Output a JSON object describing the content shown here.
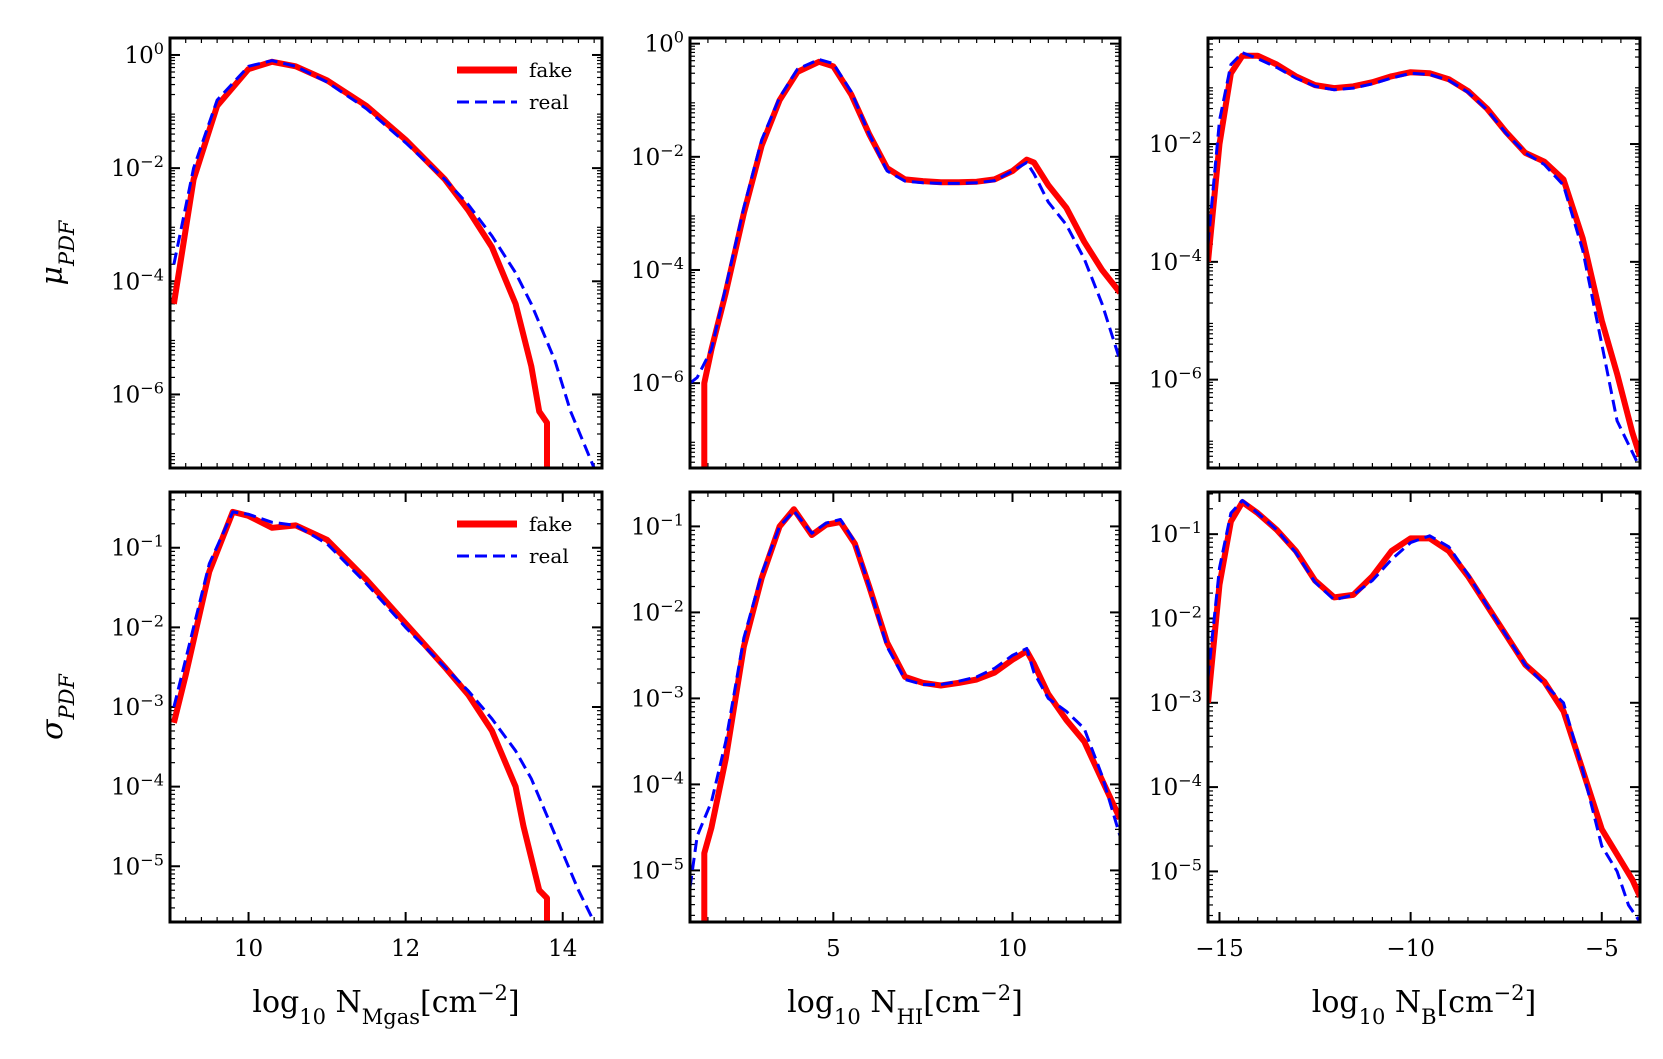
{
  "figure": {
    "type": "grid-of-line-charts",
    "rows": 2,
    "cols": 3,
    "series_style": {
      "fake": {
        "color": "#ff0000",
        "dash": "solid"
      },
      "real": {
        "color": "#0000ff",
        "dash": "dashed"
      }
    },
    "legend": {
      "entries": [
        "fake",
        "real"
      ],
      "placement": "top-right of first column panels"
    }
  },
  "chart_data": [
    {
      "id": "mu-mgas",
      "type": "line",
      "row": 0,
      "col": 0,
      "yscale": "log",
      "xlim": [
        9,
        14.5
      ],
      "ylim_exp": [
        -7.3,
        0.3
      ],
      "ylabel": "μ",
      "ylabel_sub": "PDF",
      "xlabel": "",
      "yticks": [
        {
          "exp": 0,
          "base": "10",
          "sup": "0"
        },
        {
          "exp": -2,
          "base": "10",
          "sup": "−2"
        },
        {
          "exp": -4,
          "base": "10",
          "sup": "−4"
        },
        {
          "exp": -6,
          "base": "10",
          "sup": "−6"
        }
      ],
      "xticks": [],
      "legend": {
        "fake": "fake",
        "real": "real"
      },
      "series": [
        {
          "name": "fake",
          "x": [
            9.05,
            9.3,
            9.6,
            10.0,
            10.3,
            10.6,
            11.0,
            11.5,
            12.0,
            12.5,
            12.8,
            13.1,
            13.4,
            13.6,
            13.7,
            13.8,
            13.8
          ],
          "y_exp": [
            -4.4,
            -2.2,
            -0.9,
            -0.25,
            -0.12,
            -0.2,
            -0.45,
            -0.9,
            -1.5,
            -2.2,
            -2.75,
            -3.4,
            -4.4,
            -5.5,
            -6.3,
            -6.5,
            -7.3
          ]
        },
        {
          "name": "real",
          "x": [
            9.05,
            9.3,
            9.6,
            10.0,
            10.3,
            10.6,
            11.0,
            11.5,
            12.0,
            12.5,
            12.8,
            13.1,
            13.4,
            13.6,
            13.9,
            14.1,
            14.4
          ],
          "y_exp": [
            -3.7,
            -2.0,
            -0.8,
            -0.2,
            -0.1,
            -0.2,
            -0.48,
            -0.95,
            -1.55,
            -2.2,
            -2.65,
            -3.2,
            -3.85,
            -4.4,
            -5.4,
            -6.3,
            -7.3
          ]
        }
      ]
    },
    {
      "id": "mu-hi",
      "type": "line",
      "row": 0,
      "col": 1,
      "yscale": "log",
      "xlim": [
        1,
        13
      ],
      "ylim_exp": [
        -7.5,
        0.1
      ],
      "ylabel": "",
      "xlabel": "",
      "yticks": [
        {
          "exp": 0,
          "base": "10",
          "sup": "0"
        },
        {
          "exp": -2,
          "base": "10",
          "sup": "−2"
        },
        {
          "exp": -4,
          "base": "10",
          "sup": "−4"
        },
        {
          "exp": -6,
          "base": "10",
          "sup": "−6"
        }
      ],
      "xticks": [],
      "series": [
        {
          "name": "fake",
          "x": [
            1.4,
            1.4,
            1.6,
            2.0,
            2.5,
            3.0,
            3.5,
            4.0,
            4.6,
            5.0,
            5.5,
            6.0,
            6.5,
            7.0,
            7.5,
            8.0,
            8.5,
            9.0,
            9.5,
            10.0,
            10.4,
            10.6,
            11.0,
            11.5,
            12.0,
            12.5,
            13.0
          ],
          "y_exp": [
            -7.5,
            -6.0,
            -5.4,
            -4.4,
            -3.0,
            -1.8,
            -1.0,
            -0.5,
            -0.32,
            -0.4,
            -0.9,
            -1.6,
            -2.2,
            -2.4,
            -2.43,
            -2.45,
            -2.45,
            -2.44,
            -2.4,
            -2.25,
            -2.05,
            -2.1,
            -2.5,
            -2.9,
            -3.5,
            -4.0,
            -4.4
          ]
        },
        {
          "name": "real",
          "x": [
            1.0,
            1.2,
            1.6,
            2.0,
            2.5,
            3.0,
            3.5,
            4.0,
            4.6,
            5.0,
            5.5,
            6.0,
            6.5,
            7.0,
            7.5,
            8.0,
            8.5,
            9.0,
            9.5,
            10.0,
            10.4,
            10.6,
            11.0,
            11.5,
            12.0,
            12.5,
            13.0
          ],
          "y_exp": [
            -6.0,
            -5.9,
            -5.4,
            -4.3,
            -2.9,
            -1.7,
            -0.95,
            -0.45,
            -0.28,
            -0.35,
            -0.85,
            -1.6,
            -2.25,
            -2.43,
            -2.46,
            -2.47,
            -2.47,
            -2.46,
            -2.42,
            -2.25,
            -2.1,
            -2.3,
            -2.8,
            -3.2,
            -3.8,
            -4.6,
            -5.6
          ]
        }
      ]
    },
    {
      "id": "mu-b",
      "type": "line",
      "row": 0,
      "col": 2,
      "yscale": "log",
      "xlim": [
        -15.3,
        -4.0
      ],
      "ylim_exp": [
        -7.5,
        -0.2
      ],
      "ylabel": "",
      "xlabel": "",
      "yticks": [
        {
          "exp": -2,
          "base": "10",
          "sup": "−2"
        },
        {
          "exp": -4,
          "base": "10",
          "sup": "−4"
        },
        {
          "exp": -6,
          "base": "10",
          "sup": "−6"
        }
      ],
      "xticks": [],
      "series": [
        {
          "name": "fake",
          "x": [
            -15.3,
            -15.0,
            -14.7,
            -14.4,
            -14.0,
            -13.5,
            -13.0,
            -12.5,
            -12.0,
            -11.5,
            -11.0,
            -10.5,
            -10.0,
            -9.5,
            -9.0,
            -8.5,
            -8.0,
            -7.5,
            -7.0,
            -6.5,
            -6.0,
            -5.5,
            -5.0,
            -4.6,
            -4.2,
            -4.0
          ],
          "y_exp": [
            -4.0,
            -2.0,
            -0.8,
            -0.5,
            -0.5,
            -0.65,
            -0.85,
            -1.0,
            -1.05,
            -1.02,
            -0.95,
            -0.85,
            -0.78,
            -0.8,
            -0.9,
            -1.1,
            -1.4,
            -1.8,
            -2.15,
            -2.3,
            -2.6,
            -3.6,
            -5.0,
            -5.9,
            -6.9,
            -7.3
          ]
        },
        {
          "name": "real",
          "x": [
            -15.3,
            -15.0,
            -14.7,
            -14.4,
            -14.0,
            -13.5,
            -13.0,
            -12.5,
            -12.0,
            -11.5,
            -11.0,
            -10.5,
            -10.0,
            -9.5,
            -9.0,
            -8.5,
            -8.0,
            -7.5,
            -7.0,
            -6.5,
            -6.0,
            -5.5,
            -5.0,
            -4.6,
            -4.3,
            -4.0
          ],
          "y_exp": [
            -3.7,
            -1.6,
            -0.65,
            -0.45,
            -0.55,
            -0.7,
            -0.88,
            -1.02,
            -1.08,
            -1.05,
            -0.98,
            -0.88,
            -0.8,
            -0.82,
            -0.92,
            -1.12,
            -1.42,
            -1.82,
            -2.15,
            -2.35,
            -2.7,
            -3.8,
            -5.4,
            -6.7,
            -7.1,
            -7.5
          ]
        }
      ]
    },
    {
      "id": "sigma-mgas",
      "type": "line",
      "row": 1,
      "col": 0,
      "yscale": "log",
      "xlim": [
        9,
        14.5
      ],
      "ylim_exp": [
        -5.7,
        -0.3
      ],
      "ylabel": "σ",
      "ylabel_sub": "PDF",
      "xlabel": "log",
      "xlabel_sub": "10",
      "xlabel_tail": " N",
      "xlabel_tail_sub": "Mgas",
      "xlabel_unit": "[cm",
      "xlabel_unit_sup": "−2",
      "xlabel_close": "]",
      "yticks": [
        {
          "exp": -1,
          "base": "10",
          "sup": "−1"
        },
        {
          "exp": -2,
          "base": "10",
          "sup": "−2"
        },
        {
          "exp": -3,
          "base": "10",
          "sup": "−3"
        },
        {
          "exp": -4,
          "base": "10",
          "sup": "−4"
        },
        {
          "exp": -5,
          "base": "10",
          "sup": "−5"
        }
      ],
      "xticks": [
        {
          "value": 10,
          "label": "10"
        },
        {
          "value": 12,
          "label": "12"
        },
        {
          "value": 14,
          "label": "14"
        }
      ],
      "legend": {
        "fake": "fake",
        "real": "real"
      },
      "series": [
        {
          "name": "fake",
          "x": [
            9.05,
            9.2,
            9.5,
            9.8,
            10.0,
            10.3,
            10.6,
            11.0,
            11.5,
            12.0,
            12.5,
            12.8,
            13.1,
            13.4,
            13.5,
            13.7,
            13.8,
            13.8
          ],
          "y_exp": [
            -3.2,
            -2.6,
            -1.3,
            -0.55,
            -0.6,
            -0.75,
            -0.72,
            -0.9,
            -1.4,
            -1.95,
            -2.5,
            -2.85,
            -3.3,
            -4.0,
            -4.5,
            -5.3,
            -5.4,
            -5.7
          ]
        },
        {
          "name": "real",
          "x": [
            9.05,
            9.2,
            9.5,
            9.8,
            10.0,
            10.3,
            10.6,
            11.0,
            11.5,
            12.0,
            12.5,
            12.8,
            13.1,
            13.4,
            13.6,
            13.9,
            14.2,
            14.4
          ],
          "y_exp": [
            -3.0,
            -2.4,
            -1.2,
            -0.55,
            -0.58,
            -0.68,
            -0.72,
            -0.95,
            -1.45,
            -2.0,
            -2.5,
            -2.8,
            -3.15,
            -3.55,
            -3.9,
            -4.6,
            -5.3,
            -5.7
          ]
        }
      ]
    },
    {
      "id": "sigma-hi",
      "type": "line",
      "row": 1,
      "col": 1,
      "yscale": "log",
      "xlim": [
        1,
        13
      ],
      "ylim_exp": [
        -5.6,
        -0.6
      ],
      "ylabel": "",
      "xlabel": "log",
      "xlabel_sub": "10",
      "xlabel_tail": " N",
      "xlabel_tail_sub": "HI",
      "xlabel_unit": "[cm",
      "xlabel_unit_sup": "−2",
      "xlabel_close": "]",
      "yticks": [
        {
          "exp": -1,
          "base": "10",
          "sup": "−1"
        },
        {
          "exp": -2,
          "base": "10",
          "sup": "−2"
        },
        {
          "exp": -3,
          "base": "10",
          "sup": "−3"
        },
        {
          "exp": -4,
          "base": "10",
          "sup": "−4"
        },
        {
          "exp": -5,
          "base": "10",
          "sup": "−5"
        }
      ],
      "xticks": [
        {
          "value": 5,
          "label": "5"
        },
        {
          "value": 10,
          "label": "10"
        }
      ],
      "series": [
        {
          "name": "fake",
          "x": [
            1.4,
            1.4,
            1.6,
            2.0,
            2.5,
            3.0,
            3.5,
            3.9,
            4.4,
            4.8,
            5.2,
            5.6,
            6.0,
            6.5,
            7.0,
            7.5,
            8.0,
            8.5,
            9.0,
            9.5,
            10.0,
            10.4,
            10.6,
            11.0,
            11.5,
            12.0,
            12.5,
            13.0
          ],
          "y_exp": [
            -5.6,
            -4.8,
            -4.5,
            -3.7,
            -2.4,
            -1.6,
            -1.0,
            -0.8,
            -1.1,
            -0.98,
            -0.95,
            -1.2,
            -1.7,
            -2.35,
            -2.75,
            -2.82,
            -2.85,
            -2.82,
            -2.78,
            -2.7,
            -2.55,
            -2.45,
            -2.6,
            -2.95,
            -3.25,
            -3.5,
            -3.95,
            -4.4
          ]
        },
        {
          "name": "real",
          "x": [
            1.0,
            1.2,
            1.6,
            2.0,
            2.5,
            3.0,
            3.5,
            3.9,
            4.4,
            4.8,
            5.2,
            5.6,
            6.0,
            6.5,
            7.0,
            7.5,
            8.0,
            8.5,
            9.0,
            9.5,
            10.0,
            10.4,
            10.6,
            11.0,
            11.5,
            12.0,
            12.5,
            13.0
          ],
          "y_exp": [
            -5.2,
            -4.6,
            -4.2,
            -3.5,
            -2.3,
            -1.55,
            -1.0,
            -0.82,
            -1.08,
            -0.96,
            -0.92,
            -1.18,
            -1.7,
            -2.4,
            -2.78,
            -2.84,
            -2.84,
            -2.8,
            -2.75,
            -2.65,
            -2.5,
            -2.42,
            -2.7,
            -3.0,
            -3.15,
            -3.35,
            -3.9,
            -4.6
          ]
        }
      ]
    },
    {
      "id": "sigma-b",
      "type": "line",
      "row": 1,
      "col": 2,
      "yscale": "log",
      "xlim": [
        -15.3,
        -4.0
      ],
      "ylim_exp": [
        -5.6,
        -0.5
      ],
      "ylabel": "",
      "xlabel": "log",
      "xlabel_sub": "10",
      "xlabel_tail": " N",
      "xlabel_tail_sub": "B",
      "xlabel_unit": "[cm",
      "xlabel_unit_sup": "−2",
      "xlabel_close": "]",
      "yticks": [
        {
          "exp": -1,
          "base": "10",
          "sup": "−1"
        },
        {
          "exp": -2,
          "base": "10",
          "sup": "−2"
        },
        {
          "exp": -3,
          "base": "10",
          "sup": "−3"
        },
        {
          "exp": -4,
          "base": "10",
          "sup": "−4"
        },
        {
          "exp": -5,
          "base": "10",
          "sup": "−5"
        }
      ],
      "xticks": [
        {
          "value": -15,
          "label": "−15"
        },
        {
          "value": -10,
          "label": "−10"
        },
        {
          "value": -5,
          "label": "−5"
        }
      ],
      "series": [
        {
          "name": "fake",
          "x": [
            -15.3,
            -15.0,
            -14.7,
            -14.4,
            -14.0,
            -13.5,
            -13.0,
            -12.5,
            -12.0,
            -11.5,
            -11.0,
            -10.5,
            -10.0,
            -9.5,
            -9.0,
            -8.5,
            -8.0,
            -7.5,
            -7.0,
            -6.5,
            -6.0,
            -5.5,
            -5.0,
            -4.6,
            -4.2,
            -4.0
          ],
          "y_exp": [
            -3.0,
            -1.6,
            -0.85,
            -0.62,
            -0.75,
            -0.95,
            -1.2,
            -1.55,
            -1.75,
            -1.72,
            -1.5,
            -1.2,
            -1.05,
            -1.05,
            -1.2,
            -1.5,
            -1.85,
            -2.2,
            -2.55,
            -2.75,
            -3.1,
            -3.8,
            -4.5,
            -4.8,
            -5.1,
            -5.3
          ]
        },
        {
          "name": "real",
          "x": [
            -15.3,
            -15.0,
            -14.7,
            -14.4,
            -14.0,
            -13.5,
            -13.0,
            -12.5,
            -12.0,
            -11.5,
            -11.0,
            -10.5,
            -10.0,
            -9.5,
            -9.0,
            -8.5,
            -8.0,
            -7.5,
            -7.0,
            -6.5,
            -6.0,
            -5.5,
            -5.0,
            -4.6,
            -4.3,
            -4.0
          ],
          "y_exp": [
            -2.7,
            -1.4,
            -0.75,
            -0.6,
            -0.75,
            -0.95,
            -1.22,
            -1.57,
            -1.78,
            -1.72,
            -1.55,
            -1.3,
            -1.1,
            -1.02,
            -1.15,
            -1.48,
            -1.85,
            -2.2,
            -2.55,
            -2.78,
            -3.0,
            -3.8,
            -4.7,
            -5.0,
            -5.4,
            -5.6
          ]
        }
      ]
    }
  ]
}
